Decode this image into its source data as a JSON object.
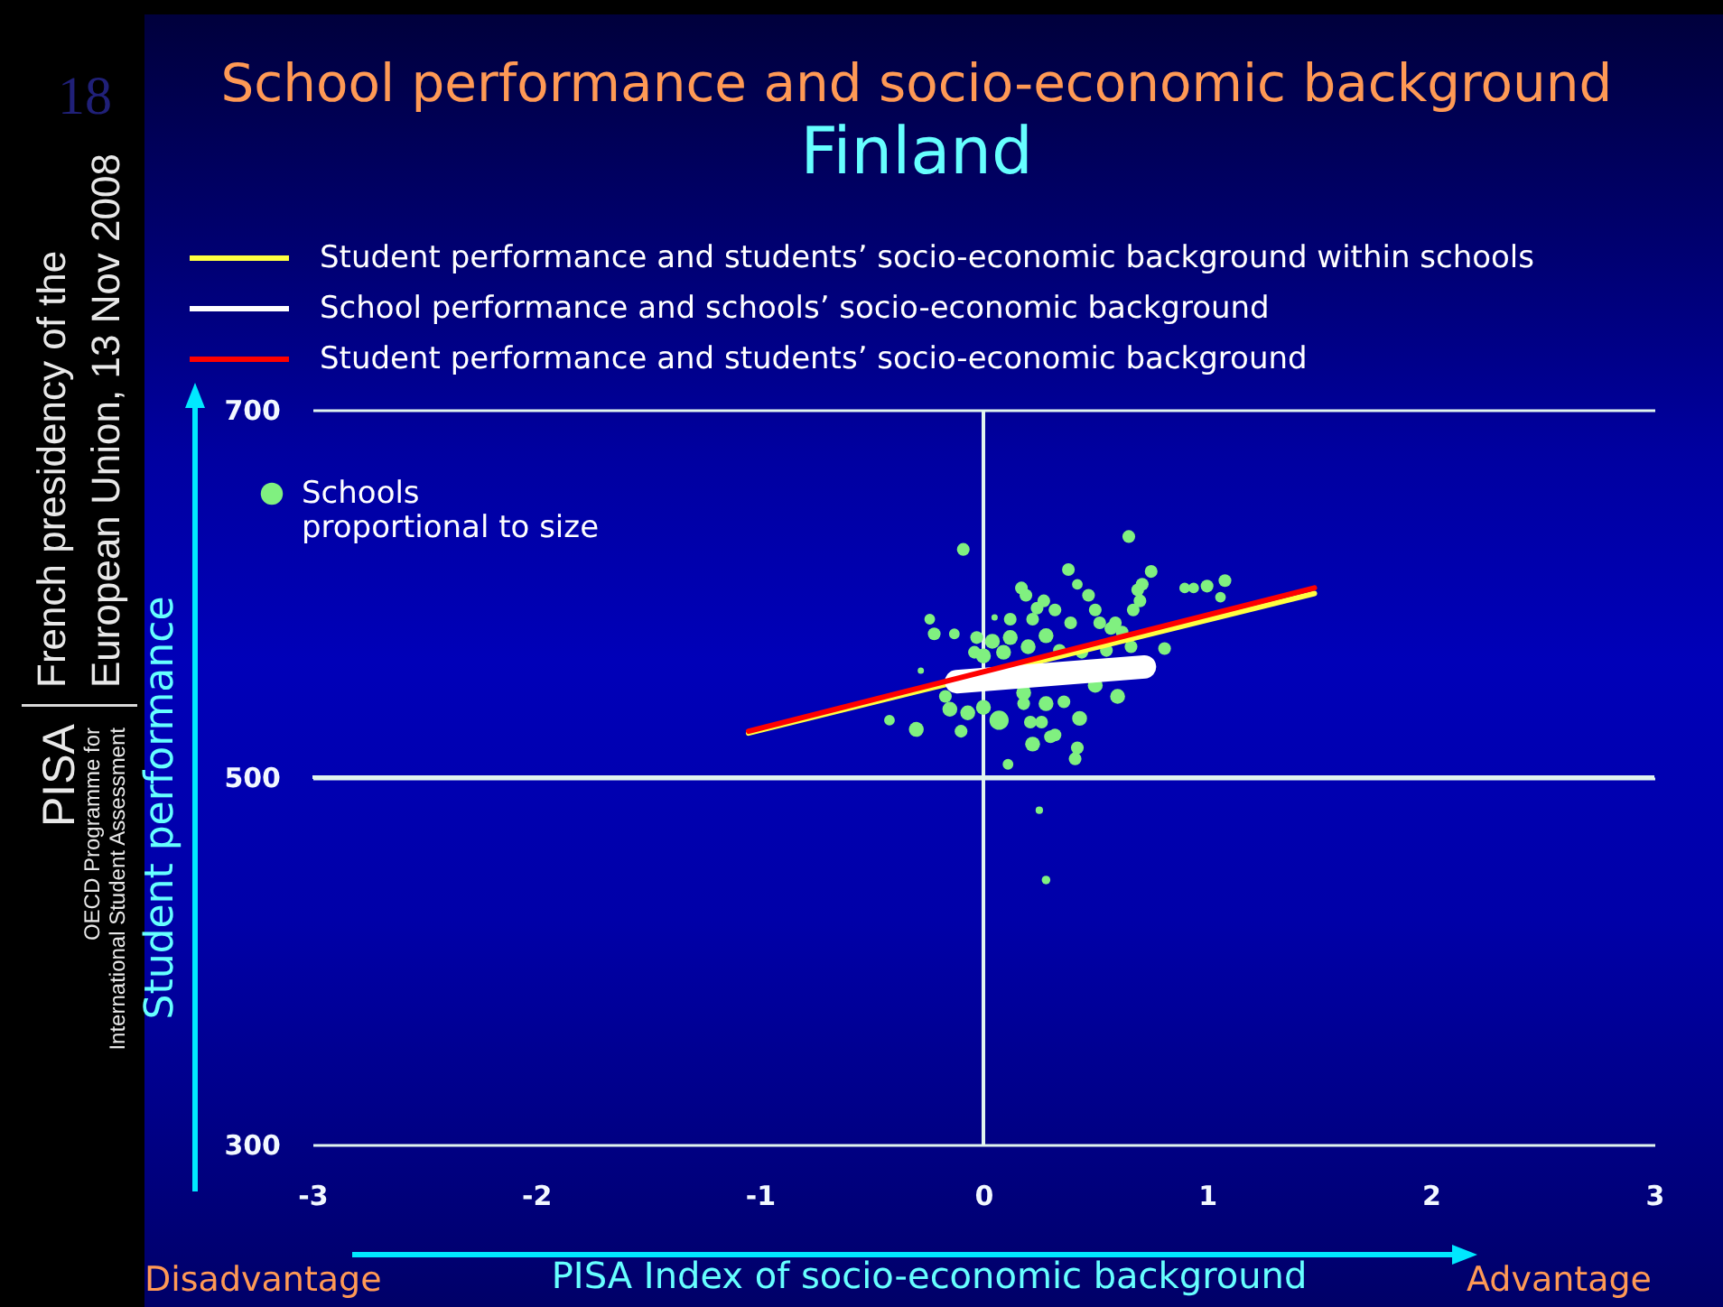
{
  "chart_data": {
    "type": "bubble",
    "title": "School performance and socio-economic background",
    "subtitle": "Finland",
    "xlabel": "PISA Index of socio-economic background",
    "ylabel": "Student performance",
    "annotations": [
      "18",
      "French presidency of the European Union, 13 Nov 2008",
      "PISA",
      "OECD Programme for International Student Assessment",
      "Disadvantage",
      "Advantage"
    ],
    "xlim": [
      -3,
      3
    ],
    "ylim": [
      300,
      700
    ],
    "xticks": [
      -3,
      -2,
      -1,
      0,
      1,
      2,
      3
    ],
    "yticks": [
      300,
      500,
      700
    ],
    "grid": "y",
    "legend": "top left",
    "ref_lines": [
      {
        "axis": "x",
        "value": 0,
        "color": "#e0f4ee"
      },
      {
        "axis": "y",
        "value": 500,
        "color": "#e0f4ee"
      }
    ],
    "series": [
      {
        "name": "Schools proportional to size",
        "color": "#80f080",
        "x": [
          -0.09,
          0.65,
          -0.24,
          -0.22,
          -0.13,
          -0.28,
          -0.42,
          -0.3,
          -0.1,
          0.11,
          0.25,
          0.28,
          0.38,
          0.42,
          0.17,
          0.75,
          0.71,
          0.7,
          0.67,
          0.9,
          0.94,
          1.0,
          1.08,
          1.06,
          0.81,
          0.6,
          0.5,
          0.43,
          0.42,
          0.41,
          0.3,
          0.22,
          0.21,
          0.07,
          0.0,
          -0.15,
          -0.17,
          0.36,
          0.28,
          0.18,
          0.05,
          0.12,
          -0.03,
          0.04,
          0.12,
          0.22,
          0.27,
          0.32,
          0.39,
          0.47,
          0.5,
          0.52,
          0.57,
          0.62,
          0.28,
          0.2,
          0.09,
          0.0,
          0.34,
          0.44,
          0.55,
          -0.07,
          0.18,
          0.26,
          0.32,
          -0.04,
          0.24,
          0.19,
          0.59,
          0.69,
          0.66
        ],
        "values": [
          624,
          631,
          586,
          578,
          578,
          558,
          531,
          526,
          525,
          507,
          482,
          444,
          613,
          605,
          603,
          612,
          605,
          596,
          591,
          603,
          603,
          604,
          607,
          598,
          570,
          544,
          550,
          532,
          516,
          510,
          522,
          518,
          530,
          531,
          538,
          537,
          544,
          541,
          540,
          546,
          587,
          586,
          576,
          574,
          576,
          586,
          596,
          591,
          584,
          599,
          591,
          584,
          581,
          579,
          577,
          571,
          568,
          566,
          569,
          568,
          569,
          535,
          540,
          530,
          523,
          568,
          592,
          599,
          584,
          602,
          571
        ],
        "sizes": [
          0.44,
          0.44,
          0.31,
          0.44,
          0.31,
          0.11,
          0.31,
          0.6,
          0.44,
          0.31,
          0.15,
          0.2,
          0.44,
          0.31,
          0.44,
          0.44,
          0.44,
          0.44,
          0.44,
          0.31,
          0.31,
          0.44,
          0.44,
          0.31,
          0.44,
          0.6,
          0.6,
          0.6,
          0.44,
          0.44,
          0.44,
          0.6,
          0.44,
          1,
          0.6,
          0.6,
          0.44,
          0.44,
          0.6,
          0.6,
          0.11,
          0.44,
          0.44,
          0.6,
          0.6,
          0.44,
          0.44,
          0.44,
          0.44,
          0.44,
          0.44,
          0.44,
          0.44,
          0.44,
          0.6,
          0.6,
          0.6,
          0.6,
          0.44,
          0.44,
          0.44,
          0.6,
          0.44,
          0.44,
          0.44,
          0.44,
          0.44,
          0.44,
          0.44,
          0.44,
          0.44
        ]
      },
      {
        "name": "Student performance and students’ socio-economic background within schools",
        "type": "line",
        "color": "#ffff40",
        "x": [
          -1.05,
          1.48
        ],
        "values": [
          524,
          600
        ]
      },
      {
        "name": "School performance and schools’ socio-economic background",
        "type": "line",
        "color": "#ffffff",
        "x": [
          -0.12,
          0.72
        ],
        "values": [
          552,
          560
        ]
      },
      {
        "name": "Student performance and students’ socio-economic background",
        "type": "line",
        "color": "#ff0000",
        "x": [
          -1.05,
          1.48
        ],
        "values": [
          525,
          603
        ]
      }
    ]
  }
}
